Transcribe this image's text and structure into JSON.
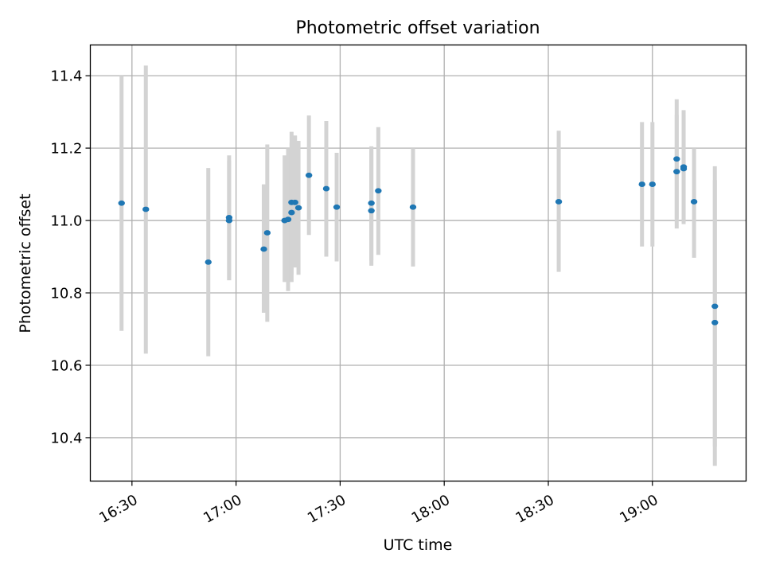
{
  "chart_data": {
    "type": "scatter",
    "title": "Photometric offset variation",
    "xlabel": "UTC time",
    "ylabel": "Photometric offset",
    "x_tick_labels": [
      "16:30",
      "17:00",
      "17:30",
      "18:00",
      "18:30",
      "19:00"
    ],
    "x_ticks": [
      "16:30",
      "17:00",
      "17:30",
      "18:00",
      "18:30",
      "19:00"
    ],
    "y_ticks": [
      10.4,
      10.6,
      10.8,
      11.0,
      11.2,
      11.4
    ],
    "y_tick_labels": [
      "10.4",
      "10.6",
      "10.8",
      "11.0",
      "11.2",
      "11.4"
    ],
    "xlim": [
      "16:18",
      "19:27"
    ],
    "ylim": [
      10.28,
      11.485
    ],
    "grid": true,
    "colors": {
      "point": "#1f77b4",
      "errorbar": "#d3d3d3",
      "grid": "#b0b0b0"
    },
    "points": [
      {
        "t": "16:27",
        "y": 11.048,
        "lo": 10.695,
        "hi": 11.4
      },
      {
        "t": "16:34",
        "y": 11.031,
        "lo": 10.632,
        "hi": 11.428
      },
      {
        "t": "16:52",
        "y": 10.885,
        "lo": 10.625,
        "hi": 11.145
      },
      {
        "t": "16:58",
        "y": 11.008,
        "lo": 10.835,
        "hi": 11.18
      },
      {
        "t": "16:58",
        "y": 11.0,
        "lo": 10.835,
        "hi": 11.165
      },
      {
        "t": "17:08",
        "y": 10.921,
        "lo": 10.745,
        "hi": 11.1
      },
      {
        "t": "17:09",
        "y": 10.966,
        "lo": 10.72,
        "hi": 11.21
      },
      {
        "t": "17:14",
        "y": 11.0,
        "lo": 10.83,
        "hi": 11.18
      },
      {
        "t": "17:15",
        "y": 11.003,
        "lo": 10.805,
        "hi": 11.2
      },
      {
        "t": "17:16",
        "y": 11.022,
        "lo": 10.83,
        "hi": 11.215
      },
      {
        "t": "17:16",
        "y": 11.05,
        "lo": 10.85,
        "hi": 11.245
      },
      {
        "t": "17:17",
        "y": 11.05,
        "lo": 10.87,
        "hi": 11.235
      },
      {
        "t": "17:18",
        "y": 11.035,
        "lo": 10.85,
        "hi": 11.22
      },
      {
        "t": "17:21",
        "y": 11.125,
        "lo": 10.96,
        "hi": 11.29
      },
      {
        "t": "17:26",
        "y": 11.088,
        "lo": 10.9,
        "hi": 11.275
      },
      {
        "t": "17:29",
        "y": 11.037,
        "lo": 10.887,
        "hi": 11.187
      },
      {
        "t": "17:39",
        "y": 11.027,
        "lo": 10.875,
        "hi": 11.195
      },
      {
        "t": "17:39",
        "y": 11.048,
        "lo": 10.89,
        "hi": 11.205
      },
      {
        "t": "17:41",
        "y": 11.082,
        "lo": 10.905,
        "hi": 11.258
      },
      {
        "t": "17:51",
        "y": 11.037,
        "lo": 10.873,
        "hi": 11.2
      },
      {
        "t": "18:33",
        "y": 11.052,
        "lo": 10.858,
        "hi": 11.248
      },
      {
        "t": "18:57",
        "y": 11.1,
        "lo": 10.928,
        "hi": 11.272
      },
      {
        "t": "19:00",
        "y": 11.1,
        "lo": 10.928,
        "hi": 11.272
      },
      {
        "t": "19:07",
        "y": 11.17,
        "lo": 11.005,
        "hi": 11.335
      },
      {
        "t": "19:07",
        "y": 11.135,
        "lo": 10.978,
        "hi": 11.292
      },
      {
        "t": "19:09",
        "y": 11.148,
        "lo": 10.99,
        "hi": 11.305
      },
      {
        "t": "19:09",
        "y": 11.143,
        "lo": 10.995,
        "hi": 11.292
      },
      {
        "t": "19:12",
        "y": 11.052,
        "lo": 10.897,
        "hi": 11.2
      },
      {
        "t": "19:18",
        "y": 10.763,
        "lo": 10.375,
        "hi": 11.15
      },
      {
        "t": "19:18",
        "y": 10.718,
        "lo": 10.322,
        "hi": 11.112
      }
    ]
  }
}
